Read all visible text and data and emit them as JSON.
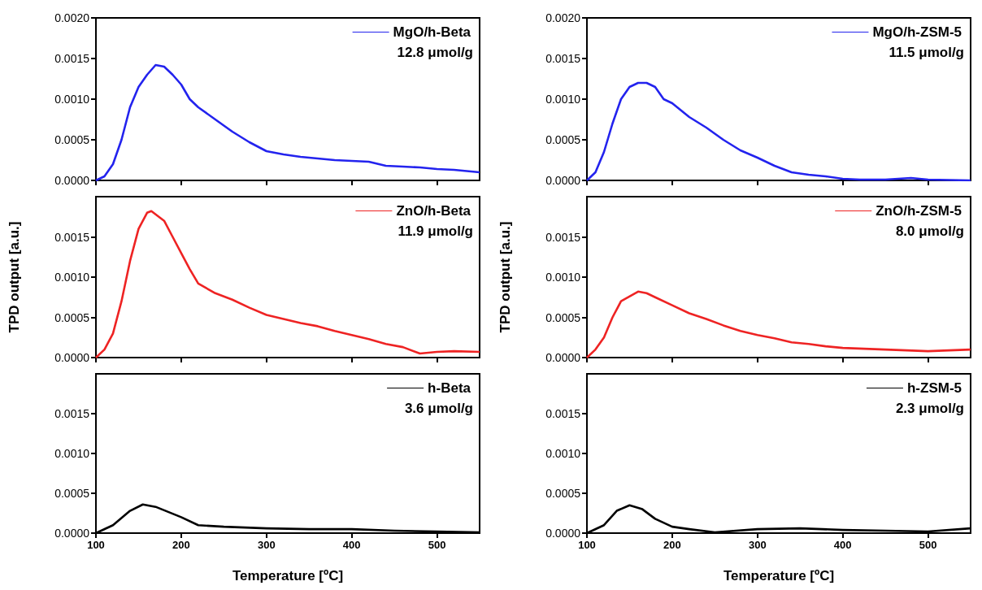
{
  "chart_data": [
    {
      "type": "line",
      "series": [
        {
          "name": "MgO/h-Beta",
          "color": "#2323ee",
          "x": [
            100,
            110,
            120,
            130,
            140,
            150,
            160,
            170,
            180,
            190,
            200,
            210,
            220,
            240,
            260,
            280,
            300,
            320,
            340,
            360,
            380,
            400,
            420,
            440,
            460,
            480,
            500,
            520,
            550
          ],
          "values": [
            0,
            5e-05,
            0.0002,
            0.0005,
            0.0009,
            0.00115,
            0.0013,
            0.00142,
            0.0014,
            0.0013,
            0.00118,
            0.001,
            0.0009,
            0.00075,
            0.0006,
            0.00047,
            0.00036,
            0.00032,
            0.00029,
            0.00027,
            0.00025,
            0.00024,
            0.00023,
            0.00018,
            0.00017,
            0.00016,
            0.00014,
            0.00013,
            0.0001
          ]
        }
      ],
      "annotations": [
        "12.8 μmol/g"
      ],
      "xlim": [
        100,
        550
      ],
      "xticks": [
        100,
        200,
        300,
        400,
        500
      ],
      "ylim": [
        0,
        0.002
      ],
      "yticks": [
        {
          "value": 0,
          "label": "0.0000"
        },
        {
          "value": 0.0005,
          "label": "0.0005"
        },
        {
          "value": 0.001,
          "label": "0.0010"
        },
        {
          "value": 0.0015,
          "label": "0.0015"
        },
        {
          "value": 0.002,
          "label": "0.0020"
        }
      ],
      "tick_labels": "y",
      "legend": "top right",
      "grid": false
    },
    {
      "type": "line",
      "series": [
        {
          "name": "MgO/h-ZSM-5",
          "color": "#2323ee",
          "x": [
            100,
            110,
            120,
            130,
            140,
            150,
            160,
            170,
            180,
            190,
            200,
            220,
            240,
            260,
            280,
            300,
            320,
            340,
            360,
            380,
            400,
            420,
            450,
            480,
            500,
            550
          ],
          "values": [
            0,
            0.0001,
            0.00035,
            0.0007,
            0.001,
            0.00115,
            0.0012,
            0.0012,
            0.00115,
            0.001,
            0.00095,
            0.00078,
            0.00065,
            0.0005,
            0.00037,
            0.00028,
            0.00018,
            0.0001,
            7e-05,
            5e-05,
            2e-05,
            1e-05,
            1e-05,
            3e-05,
            1e-05,
            0
          ]
        }
      ],
      "annotations": [
        "11.5 μmol/g"
      ],
      "xlim": [
        100,
        550
      ],
      "xticks": [
        100,
        200,
        300,
        400,
        500
      ],
      "ylim": [
        0,
        0.002
      ],
      "yticks": [
        {
          "value": 0,
          "label": "0.0000"
        },
        {
          "value": 0.0005,
          "label": "0.0005"
        },
        {
          "value": 0.001,
          "label": "0.0010"
        },
        {
          "value": 0.0015,
          "label": "0.0015"
        },
        {
          "value": 0.002,
          "label": "0.0020"
        }
      ],
      "tick_labels": "y",
      "legend": "top right",
      "grid": false
    },
    {
      "type": "line",
      "ylabel": "TPD output [a.u.]",
      "series": [
        {
          "name": "ZnO/h-Beta",
          "color": "#ee2323",
          "x": [
            100,
            110,
            120,
            130,
            140,
            150,
            160,
            165,
            170,
            180,
            190,
            200,
            210,
            220,
            240,
            260,
            280,
            300,
            320,
            340,
            360,
            380,
            400,
            420,
            440,
            460,
            480,
            500,
            520,
            550
          ],
          "values": [
            0,
            0.0001,
            0.0003,
            0.0007,
            0.0012,
            0.0016,
            0.0018,
            0.00182,
            0.00178,
            0.0017,
            0.0015,
            0.0013,
            0.0011,
            0.00092,
            0.0008,
            0.00072,
            0.00062,
            0.00053,
            0.00048,
            0.00043,
            0.00039,
            0.00033,
            0.00028,
            0.00023,
            0.00017,
            0.00013,
            5e-05,
            7e-05,
            8e-05,
            7e-05
          ]
        }
      ],
      "annotations": [
        "11.9 μmol/g"
      ],
      "xlim": [
        100,
        550
      ],
      "xticks": [
        100,
        200,
        300,
        400,
        500
      ],
      "ylim": [
        0,
        0.002
      ],
      "yticks": [
        {
          "value": 0,
          "label": "0.0000"
        },
        {
          "value": 0.0005,
          "label": "0.0005"
        },
        {
          "value": 0.001,
          "label": "0.0010"
        },
        {
          "value": 0.0015,
          "label": "0.0015"
        }
      ],
      "tick_labels": "y",
      "legend": "top right",
      "grid": false
    },
    {
      "type": "line",
      "ylabel": "TPD output [a.u.]",
      "series": [
        {
          "name": "ZnO/h-ZSM-5",
          "color": "#ee2323",
          "x": [
            100,
            110,
            120,
            130,
            140,
            160,
            170,
            180,
            200,
            220,
            240,
            260,
            280,
            300,
            320,
            340,
            360,
            380,
            400,
            450,
            500,
            550
          ],
          "values": [
            0,
            0.0001,
            0.00025,
            0.0005,
            0.0007,
            0.00082,
            0.0008,
            0.00075,
            0.00065,
            0.00055,
            0.00048,
            0.0004,
            0.00033,
            0.00028,
            0.00024,
            0.00019,
            0.00017,
            0.00014,
            0.00012,
            0.0001,
            8e-05,
            0.0001
          ]
        }
      ],
      "annotations": [
        "8.0 μmol/g"
      ],
      "xlim": [
        100,
        550
      ],
      "xticks": [
        100,
        200,
        300,
        400,
        500
      ],
      "ylim": [
        0,
        0.002
      ],
      "yticks": [
        {
          "value": 0,
          "label": "0.0000"
        },
        {
          "value": 0.0005,
          "label": "0.0005"
        },
        {
          "value": 0.001,
          "label": "0.0010"
        },
        {
          "value": 0.0015,
          "label": "0.0015"
        }
      ],
      "tick_labels": "y",
      "legend": "top right",
      "grid": false
    },
    {
      "type": "line",
      "xlabel": "Temperature [ºC]",
      "series": [
        {
          "name": "h-Beta",
          "color": "#000000",
          "x": [
            100,
            120,
            140,
            155,
            170,
            200,
            220,
            250,
            300,
            350,
            400,
            450,
            500,
            550
          ],
          "values": [
            0,
            0.0001,
            0.00028,
            0.00036,
            0.00033,
            0.0002,
            0.0001,
            8e-05,
            6e-05,
            5e-05,
            5e-05,
            3e-05,
            2e-05,
            1e-05
          ]
        }
      ],
      "annotations": [
        "3.6 μmol/g"
      ],
      "xlim": [
        100,
        550
      ],
      "xticks": [
        100,
        200,
        300,
        400,
        500
      ],
      "ylim": [
        0,
        0.002
      ],
      "yticks": [
        {
          "value": 0,
          "label": "0.0000"
        },
        {
          "value": 0.0005,
          "label": "0.0005"
        },
        {
          "value": 0.001,
          "label": "0.0010"
        },
        {
          "value": 0.0015,
          "label": "0.0015"
        }
      ],
      "legend": "top right",
      "grid": false
    },
    {
      "type": "line",
      "xlabel": "Temperature [ºC]",
      "series": [
        {
          "name": "h-ZSM-5",
          "color": "#000000",
          "x": [
            100,
            120,
            135,
            150,
            165,
            180,
            200,
            220,
            250,
            300,
            350,
            400,
            450,
            500,
            550
          ],
          "values": [
            0,
            0.0001,
            0.00028,
            0.00035,
            0.0003,
            0.00018,
            8e-05,
            5e-05,
            1e-05,
            5e-05,
            6e-05,
            4e-05,
            3e-05,
            2e-05,
            6e-05
          ]
        }
      ],
      "annotations": [
        "2.3 μmol/g"
      ],
      "xlim": [
        100,
        550
      ],
      "xticks": [
        100,
        200,
        300,
        400,
        500
      ],
      "ylim": [
        0,
        0.002
      ],
      "yticks": [
        {
          "value": 0,
          "label": "0.0000"
        },
        {
          "value": 0.0005,
          "label": "0.0005"
        },
        {
          "value": 0.001,
          "label": "0.0010"
        },
        {
          "value": 0.0015,
          "label": "0.0015"
        }
      ],
      "legend": "top right",
      "grid": false
    }
  ]
}
